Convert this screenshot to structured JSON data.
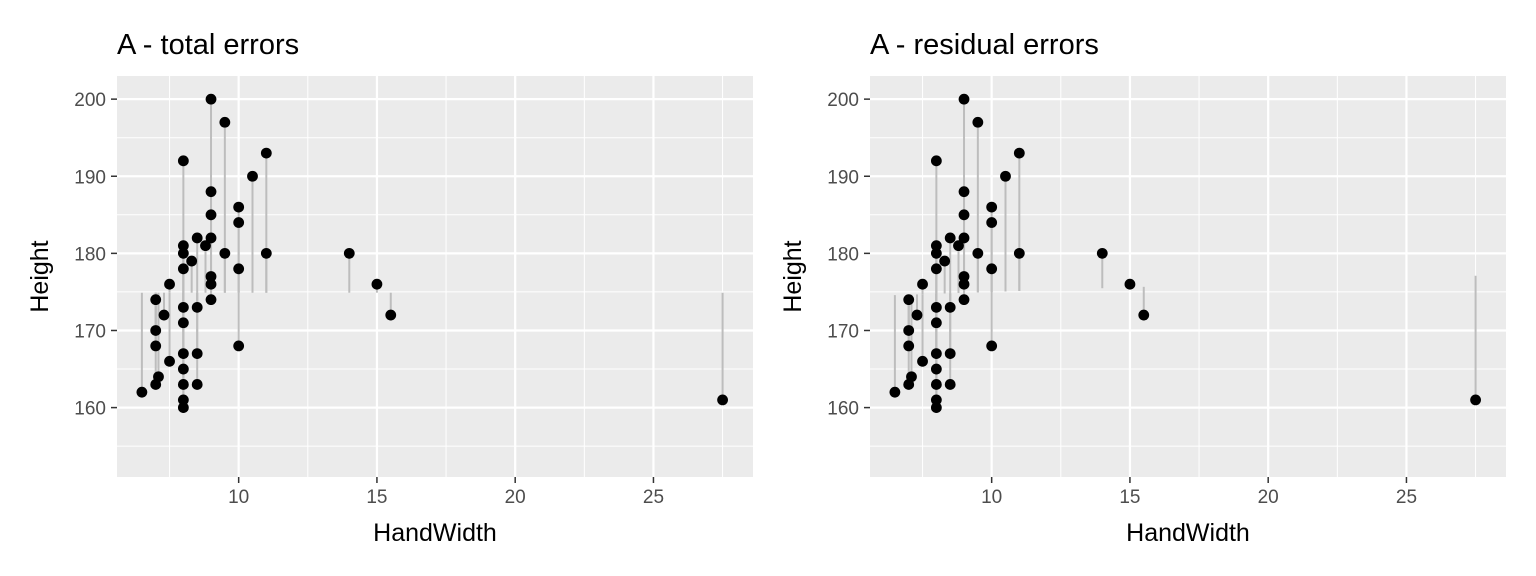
{
  "chart_data": [
    {
      "type": "scatter",
      "title": "A - total errors",
      "xlabel": "HandWidth",
      "ylabel": "Height",
      "xlim": [
        5.6,
        28.6
      ],
      "ylim": [
        151,
        203
      ],
      "xticks": [
        10,
        15,
        20,
        25
      ],
      "yticks": [
        160,
        170,
        180,
        190,
        200
      ],
      "grid": true,
      "segment_color": "#bdbdbd",
      "point_color": "#000000",
      "panel_color": "#ebebeb",
      "grid_color": "#ffffff",
      "segment_anchor": 174.9,
      "points": [
        {
          "x": 6.5,
          "y": 162
        },
        {
          "x": 7,
          "y": 163
        },
        {
          "x": 7,
          "y": 168
        },
        {
          "x": 7,
          "y": 170
        },
        {
          "x": 7,
          "y": 174
        },
        {
          "x": 7.1,
          "y": 164
        },
        {
          "x": 7.3,
          "y": 172
        },
        {
          "x": 7.5,
          "y": 176
        },
        {
          "x": 7.5,
          "y": 166
        },
        {
          "x": 8,
          "y": 192
        },
        {
          "x": 8,
          "y": 181
        },
        {
          "x": 8,
          "y": 180
        },
        {
          "x": 8,
          "y": 178
        },
        {
          "x": 8,
          "y": 173
        },
        {
          "x": 8,
          "y": 171
        },
        {
          "x": 8,
          "y": 167
        },
        {
          "x": 8,
          "y": 165
        },
        {
          "x": 8,
          "y": 163
        },
        {
          "x": 8,
          "y": 161
        },
        {
          "x": 8,
          "y": 160
        },
        {
          "x": 8.3,
          "y": 179
        },
        {
          "x": 8.5,
          "y": 182
        },
        {
          "x": 8.5,
          "y": 173
        },
        {
          "x": 8.5,
          "y": 167
        },
        {
          "x": 8.5,
          "y": 163
        },
        {
          "x": 8.8,
          "y": 181
        },
        {
          "x": 9,
          "y": 200
        },
        {
          "x": 9,
          "y": 188
        },
        {
          "x": 9,
          "y": 185
        },
        {
          "x": 9,
          "y": 182
        },
        {
          "x": 9,
          "y": 177
        },
        {
          "x": 9,
          "y": 176
        },
        {
          "x": 9,
          "y": 174
        },
        {
          "x": 9.5,
          "y": 197
        },
        {
          "x": 9.5,
          "y": 180
        },
        {
          "x": 10,
          "y": 186
        },
        {
          "x": 10,
          "y": 184
        },
        {
          "x": 10,
          "y": 178
        },
        {
          "x": 10,
          "y": 168
        },
        {
          "x": 10.5,
          "y": 190
        },
        {
          "x": 11,
          "y": 193
        },
        {
          "x": 11,
          "y": 180
        },
        {
          "x": 14,
          "y": 180
        },
        {
          "x": 15,
          "y": 176
        },
        {
          "x": 15.5,
          "y": 172
        },
        {
          "x": 27.5,
          "y": 161
        }
      ]
    },
    {
      "type": "scatter",
      "title": "A - residual errors",
      "xlabel": "HandWidth",
      "ylabel": "Height",
      "xlim": [
        5.6,
        28.6
      ],
      "ylim": [
        151,
        203
      ],
      "xticks": [
        10,
        15,
        20,
        25
      ],
      "yticks": [
        160,
        170,
        180,
        190,
        200
      ],
      "grid": true,
      "segment_color": "#bdbdbd",
      "point_color": "#000000",
      "panel_color": "#ebebeb",
      "grid_color": "#ffffff",
      "fit_line": {
        "intercept": 173.8,
        "slope": 0.12
      },
      "points": [
        {
          "x": 6.5,
          "y": 162
        },
        {
          "x": 7,
          "y": 163
        },
        {
          "x": 7,
          "y": 168
        },
        {
          "x": 7,
          "y": 170
        },
        {
          "x": 7,
          "y": 174
        },
        {
          "x": 7.1,
          "y": 164
        },
        {
          "x": 7.3,
          "y": 172
        },
        {
          "x": 7.5,
          "y": 176
        },
        {
          "x": 7.5,
          "y": 166
        },
        {
          "x": 8,
          "y": 192
        },
        {
          "x": 8,
          "y": 181
        },
        {
          "x": 8,
          "y": 180
        },
        {
          "x": 8,
          "y": 178
        },
        {
          "x": 8,
          "y": 173
        },
        {
          "x": 8,
          "y": 171
        },
        {
          "x": 8,
          "y": 167
        },
        {
          "x": 8,
          "y": 165
        },
        {
          "x": 8,
          "y": 163
        },
        {
          "x": 8,
          "y": 161
        },
        {
          "x": 8,
          "y": 160
        },
        {
          "x": 8.3,
          "y": 179
        },
        {
          "x": 8.5,
          "y": 182
        },
        {
          "x": 8.5,
          "y": 173
        },
        {
          "x": 8.5,
          "y": 167
        },
        {
          "x": 8.5,
          "y": 163
        },
        {
          "x": 8.8,
          "y": 181
        },
        {
          "x": 9,
          "y": 200
        },
        {
          "x": 9,
          "y": 188
        },
        {
          "x": 9,
          "y": 185
        },
        {
          "x": 9,
          "y": 182
        },
        {
          "x": 9,
          "y": 177
        },
        {
          "x": 9,
          "y": 176
        },
        {
          "x": 9,
          "y": 174
        },
        {
          "x": 9.5,
          "y": 197
        },
        {
          "x": 9.5,
          "y": 180
        },
        {
          "x": 10,
          "y": 186
        },
        {
          "x": 10,
          "y": 184
        },
        {
          "x": 10,
          "y": 178
        },
        {
          "x": 10,
          "y": 168
        },
        {
          "x": 10.5,
          "y": 190
        },
        {
          "x": 11,
          "y": 193
        },
        {
          "x": 11,
          "y": 180
        },
        {
          "x": 14,
          "y": 180
        },
        {
          "x": 15,
          "y": 176
        },
        {
          "x": 15.5,
          "y": 172
        },
        {
          "x": 27.5,
          "y": 161
        }
      ]
    }
  ]
}
